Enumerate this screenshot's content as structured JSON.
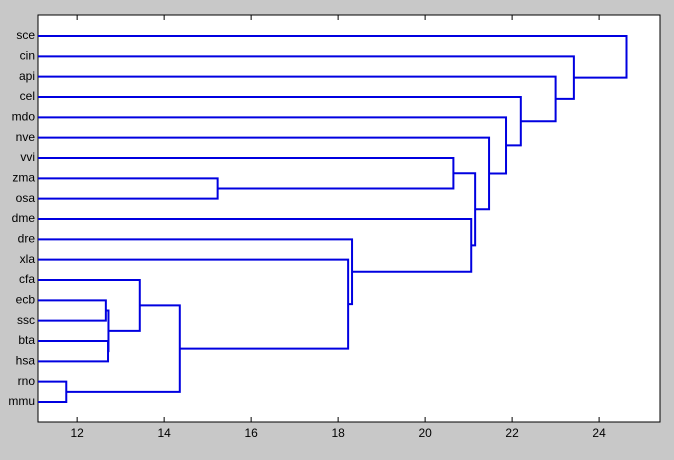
{
  "chart_data": {
    "type": "dendrogram",
    "leaves": [
      "sce",
      "cin",
      "api",
      "cel",
      "mdo",
      "nve",
      "vvi",
      "zma",
      "osa",
      "dme",
      "dre",
      "xla",
      "cfa",
      "ecb",
      "ssc",
      "bta",
      "hsa",
      "rno",
      "mmu"
    ],
    "merges": [
      {
        "pair": [
          17,
          18
        ],
        "height": 11.75
      },
      {
        "pair": [
          13,
          14
        ],
        "height": 12.66
      },
      {
        "pair": [
          15,
          16
        ],
        "height": 12.71
      },
      {
        "pair": [
          20,
          21
        ],
        "height": 12.72
      },
      {
        "pair": [
          12,
          22
        ],
        "height": 13.44
      },
      {
        "pair": [
          23,
          19
        ],
        "height": 14.36
      },
      {
        "pair": [
          11,
          24
        ],
        "height": 18.23
      },
      {
        "pair": [
          10,
          25
        ],
        "height": 18.32
      },
      {
        "pair": [
          7,
          8
        ],
        "height": 15.23
      },
      {
        "pair": [
          6,
          27
        ],
        "height": 20.65
      },
      {
        "pair": [
          9,
          26
        ],
        "height": 21.06
      },
      {
        "pair": [
          28,
          29
        ],
        "height": 21.15
      },
      {
        "pair": [
          5,
          30
        ],
        "height": 21.47
      },
      {
        "pair": [
          4,
          31
        ],
        "height": 21.86
      },
      {
        "pair": [
          3,
          32
        ],
        "height": 22.2
      },
      {
        "pair": [
          2,
          33
        ],
        "height": 23.0
      },
      {
        "pair": [
          1,
          34
        ],
        "height": 23.42
      },
      {
        "pair": [
          0,
          35
        ],
        "height": 24.63
      }
    ],
    "color": "#0000e0",
    "xlim": [
      11.1,
      25.4
    ],
    "xticks": [
      12,
      14,
      16,
      18,
      20,
      22,
      24
    ]
  }
}
